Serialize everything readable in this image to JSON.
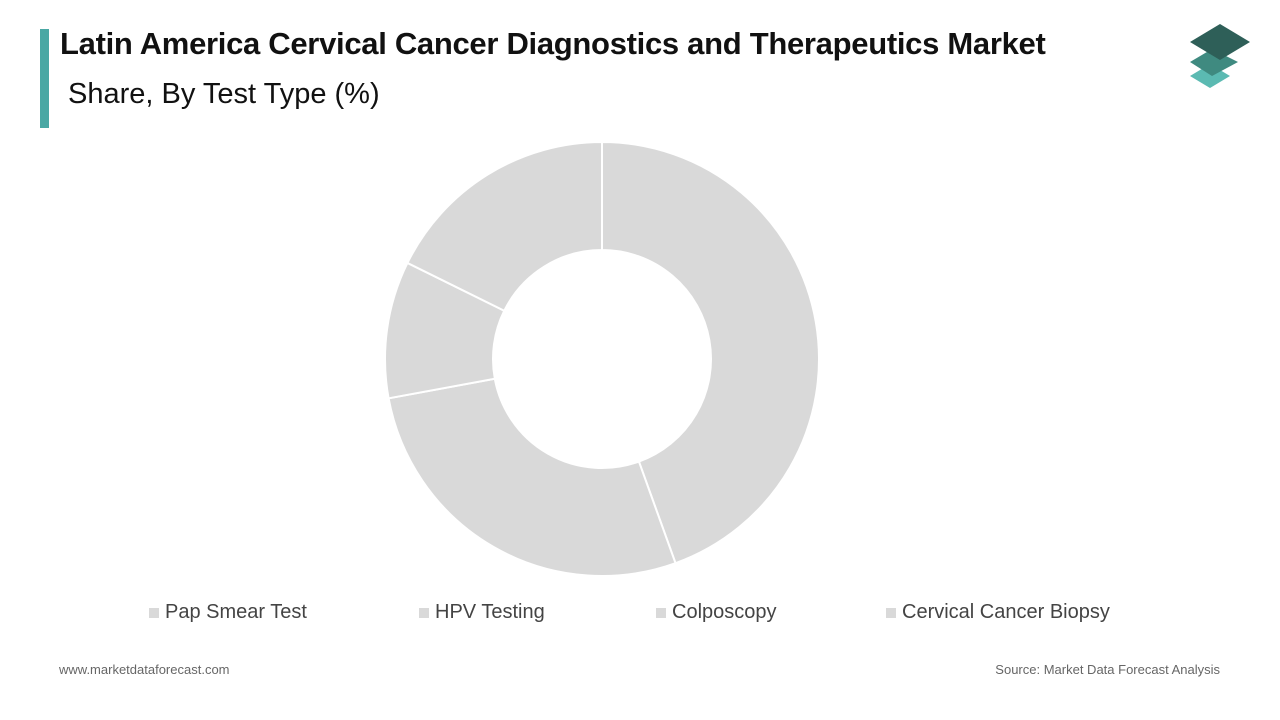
{
  "header": {
    "title": "Latin America Cervical Cancer Diagnostics and Therapeutics Market",
    "subtitle": "Share, By Test Type (%)",
    "accent_color": "#4aa8a4"
  },
  "logo": {
    "icon": "stacked-layers-logo",
    "colors": [
      "#2e5f58",
      "#3f8a80",
      "#5bbab2"
    ]
  },
  "chart_data": {
    "type": "pie",
    "donut": true,
    "title": "Latin America Cervical Cancer Diagnostics and Therapeutics Market",
    "subtitle": "Share, By Test Type (%)",
    "categories": [
      "Pap Smear Test",
      "HPV Testing",
      "Colposcopy",
      "Cervical Cancer Biopsy"
    ],
    "values": [
      44.5,
      27.6,
      10.2,
      17.7
    ],
    "slice_color": "#d9d9d9",
    "separator_color": "#ffffff",
    "legend_position": "bottom"
  },
  "footer": {
    "website": "www.marketdataforecast.com",
    "source": "Source: Market Data Forecast Analysis"
  }
}
